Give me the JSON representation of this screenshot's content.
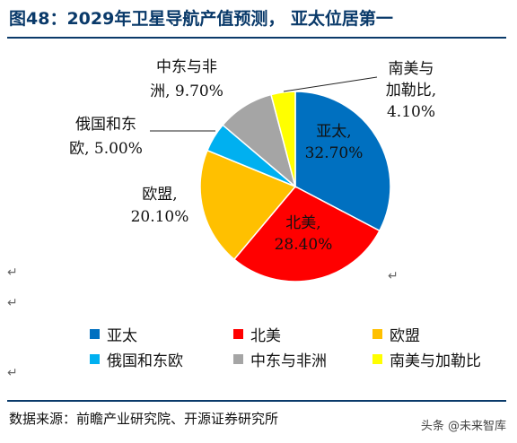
{
  "title": "图48：2029年卫星导航产值预测， 亚太位居第一",
  "source": "数据来源：前瞻产业研究院、开源证券研究所",
  "watermark": "头条 @未来智库",
  "chart_data": {
    "type": "pie",
    "title": "",
    "slices": [
      {
        "name": "亚太",
        "value": 32.7,
        "color": "#0070c0",
        "label_pct": "32.70%",
        "label_lines": [
          "亚太,",
          "32.70%"
        ]
      },
      {
        "name": "北美",
        "value": 28.4,
        "color": "#ff0000",
        "label_pct": "28.40%",
        "label_lines": [
          "北美,",
          "28.40%"
        ]
      },
      {
        "name": "欧盟",
        "value": 20.1,
        "color": "#ffc000",
        "label_pct": "20.10%",
        "label_lines": [
          "欧盟,",
          "20.10%"
        ]
      },
      {
        "name": "俄国和东欧",
        "value": 5.0,
        "color": "#00b0f0",
        "label_pct": "5.00%",
        "label_lines": [
          "俄国和东",
          "欧, 5.00%"
        ]
      },
      {
        "name": "中东与非洲",
        "value": 9.7,
        "color": "#a5a5a5",
        "label_pct": "9.70%",
        "label_lines": [
          "中东与非",
          "洲, 9.70%"
        ]
      },
      {
        "name": "南美与加勒比",
        "value": 4.1,
        "color": "#ffff00",
        "label_pct": "4.10%",
        "label_lines": [
          "南美与",
          "加勒比,",
          "4.10%"
        ]
      }
    ],
    "legend_position": "bottom"
  }
}
